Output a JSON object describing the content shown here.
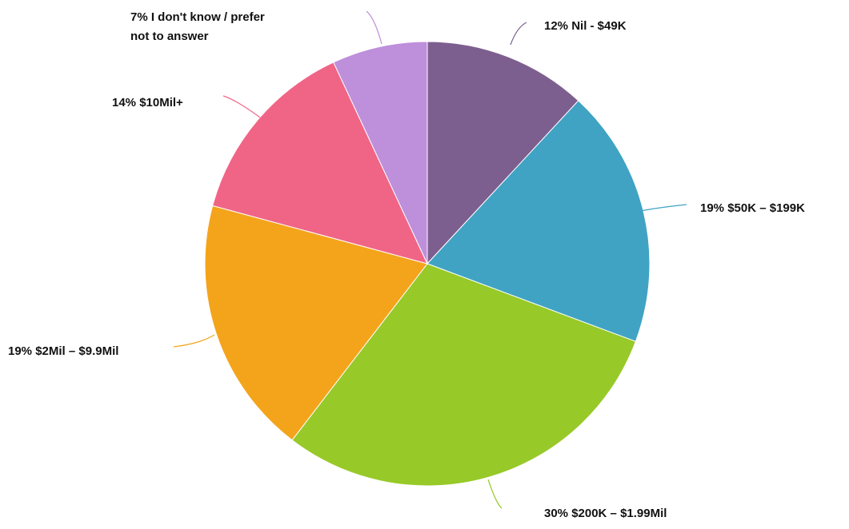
{
  "chart_data": {
    "type": "pie",
    "title": "",
    "slices": [
      {
        "label": "12% Nil - $49K",
        "value": 12,
        "color": "#7d5f8f"
      },
      {
        "label": "19% $50K – $199K",
        "value": 19,
        "color": "#40a3c3"
      },
      {
        "label": "30% $200K – $1.99Mil",
        "value": 30,
        "color": "#97c928"
      },
      {
        "label": "19% $2Mil – $9.9Mil",
        "value": 19,
        "color": "#f4a41b"
      },
      {
        "label": "14% $10Mil+",
        "value": 14,
        "color": "#f06586"
      },
      {
        "label": "7% I don't know / prefer not to answer",
        "value": 7,
        "color": "#be8fdb"
      }
    ]
  }
}
